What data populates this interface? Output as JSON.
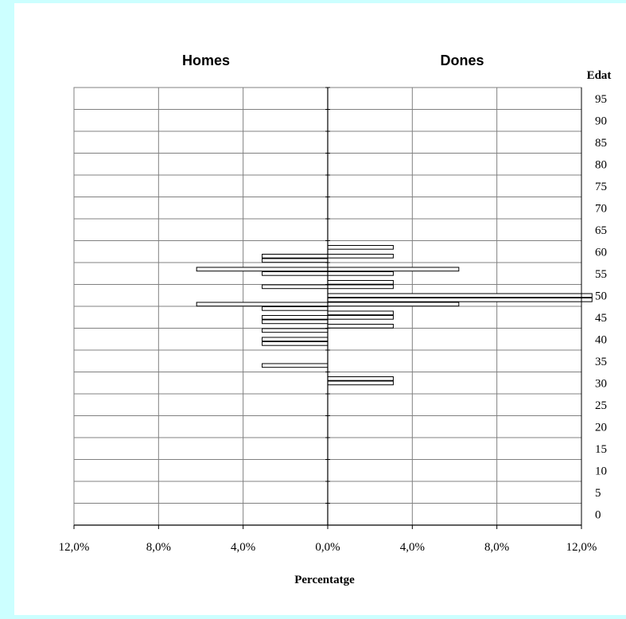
{
  "chart_data": {
    "type": "bar",
    "subtype": "population-pyramid",
    "left_title": "Homes",
    "right_title": "Dones",
    "y_axis_title": "Edat",
    "x_axis_title": "Percentatge",
    "x_tick_labels": [
      "12,0%",
      "8,0%",
      "4,0%",
      "0,0%",
      "4,0%",
      "8,0%",
      "12,0%"
    ],
    "x_range": [
      -12,
      12
    ],
    "y_range": [
      0,
      100
    ],
    "y_ticks": [
      0,
      5,
      10,
      15,
      20,
      25,
      30,
      35,
      40,
      45,
      50,
      55,
      60,
      65,
      70,
      75,
      80,
      85,
      90,
      95
    ],
    "grid": true,
    "colors": {
      "bar_fill": "#ffffff",
      "bar_stroke": "#000000",
      "grid": "#808080",
      "background": "#ccffff"
    },
    "series": [
      {
        "name": "Homes",
        "ages": [
          60,
          61,
          57,
          58,
          54,
          50,
          49,
          47,
          46,
          44,
          41,
          42,
          36
        ],
        "values": [
          3.1,
          3.1,
          3.1,
          6.2,
          3.1,
          6.2,
          3.1,
          3.1,
          3.1,
          3.1,
          3.1,
          3.1,
          3.1
        ]
      },
      {
        "name": "Dones",
        "ages": [
          63,
          61,
          58,
          57,
          55,
          54,
          52,
          51,
          50,
          48,
          47,
          45,
          33,
          32
        ],
        "values": [
          3.1,
          3.1,
          6.2,
          3.1,
          3.1,
          3.1,
          12.5,
          12.5,
          6.2,
          3.1,
          3.1,
          3.1,
          3.1,
          3.1
        ]
      }
    ]
  }
}
